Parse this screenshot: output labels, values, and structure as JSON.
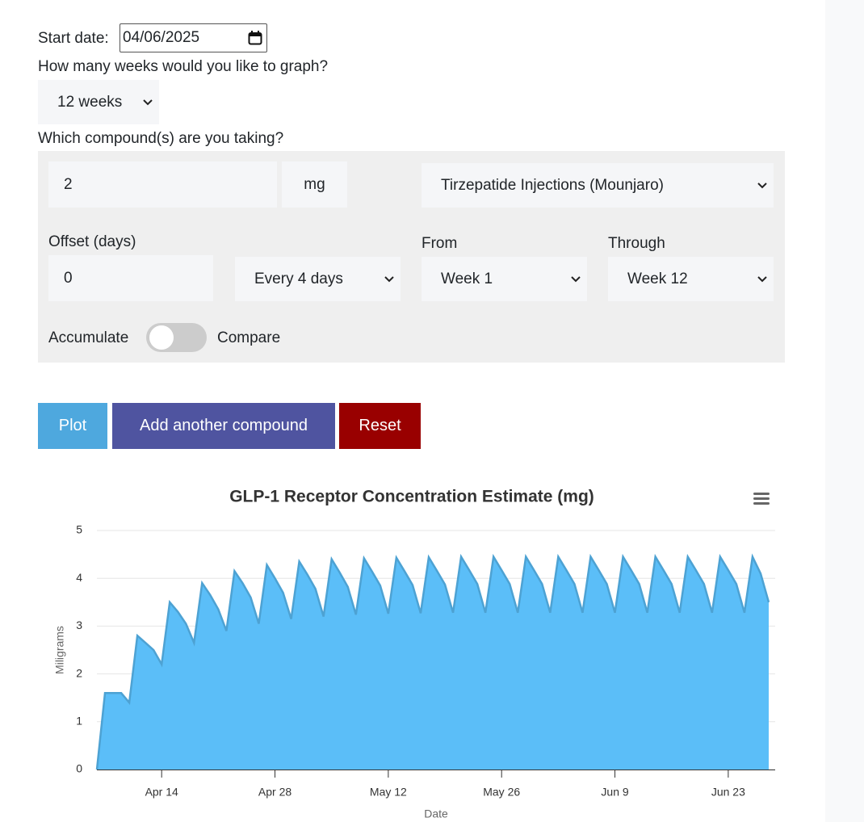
{
  "form": {
    "start_date_label": "Start date:",
    "start_date": "04/06/2025",
    "weeks_label": "How many weeks would you like to graph?",
    "weeks": "12 weeks",
    "compounds_label": "Which compound(s) are you taking?",
    "compound": {
      "dose": "2",
      "unit": "mg",
      "name": "Tirzepatide Injections (Mounjaro)",
      "offset_label": "Offset (days)",
      "offset": "0",
      "frequency": "Every 4 days",
      "from_label": "From",
      "from": "Week 1",
      "through_label": "Through",
      "through": "Week 12",
      "accumulate": "Accumulate",
      "compare": "Compare"
    },
    "buttons": [
      "Plot",
      "Add another compound",
      "Reset"
    ]
  },
  "chart_data": {
    "type": "area",
    "title": "GLP-1 Receptor Concentration Estimate (mg)",
    "x_label": "Date",
    "y_label": "Miligrams",
    "x": [
      "Apr 6",
      "Apr 7",
      "Apr 8",
      "Apr 9",
      "Apr 10",
      "Apr 11",
      "Apr 12",
      "Apr 13",
      "Apr 14",
      "Apr 15",
      "Apr 16",
      "Apr 17",
      "Apr 18",
      "Apr 19",
      "Apr 20",
      "Apr 21",
      "Apr 22",
      "Apr 23",
      "Apr 24",
      "Apr 25",
      "Apr 26",
      "Apr 27",
      "Apr 28",
      "Apr 29",
      "Apr 30",
      "May 1",
      "May 2",
      "May 3",
      "May 4",
      "May 5",
      "May 6",
      "May 7",
      "May 8",
      "May 9",
      "May 10",
      "May 11",
      "May 12",
      "May 13",
      "May 14",
      "May 15",
      "May 16",
      "May 17",
      "May 18",
      "May 19",
      "May 20",
      "May 21",
      "May 22",
      "May 23",
      "May 24",
      "May 25",
      "May 26",
      "May 27",
      "May 28",
      "May 29",
      "May 30",
      "May 31",
      "Jun 1",
      "Jun 2",
      "Jun 3",
      "Jun 4",
      "Jun 5",
      "Jun 6",
      "Jun 7",
      "Jun 8",
      "Jun 9",
      "Jun 10",
      "Jun 11",
      "Jun 12",
      "Jun 13",
      "Jun 14",
      "Jun 15",
      "Jun 16",
      "Jun 17",
      "Jun 18",
      "Jun 19",
      "Jun 20",
      "Jun 21",
      "Jun 22",
      "Jun 23",
      "Jun 24",
      "Jun 25",
      "Jun 26",
      "Jun 27",
      "Jun 28"
    ],
    "series": [
      {
        "name": "Tirzepatide Injections (Mounjaro)",
        "color": "#5bbef8",
        "values": [
          0,
          1.6,
          1.6,
          1.6,
          1.4,
          2.8,
          2.65,
          2.5,
          2.2,
          3.5,
          3.3,
          3.05,
          2.65,
          3.9,
          3.65,
          3.35,
          2.9,
          4.15,
          3.9,
          3.6,
          3.05,
          4.28,
          4.0,
          3.7,
          3.15,
          4.35,
          4.08,
          3.78,
          3.2,
          4.4,
          4.12,
          3.82,
          3.24,
          4.42,
          4.14,
          3.85,
          3.26,
          4.43,
          4.15,
          3.86,
          3.27,
          4.44,
          4.16,
          3.87,
          3.28,
          4.45,
          4.17,
          3.88,
          3.28,
          4.45,
          4.17,
          3.88,
          3.28,
          4.45,
          4.17,
          3.88,
          3.28,
          4.45,
          4.17,
          3.88,
          3.28,
          4.45,
          4.17,
          3.88,
          3.28,
          4.45,
          4.17,
          3.88,
          3.28,
          4.45,
          4.17,
          3.88,
          3.28,
          4.45,
          4.17,
          3.88,
          3.28,
          4.45,
          4.17,
          3.88,
          3.28,
          4.45,
          4.1,
          3.5
        ]
      }
    ],
    "xticks": [
      "Apr 14",
      "Apr 28",
      "May 12",
      "May 26",
      "Jun 9",
      "Jun 23"
    ],
    "ylim": [
      0,
      5
    ],
    "yticks": [
      0,
      1,
      2,
      3,
      4,
      5
    ],
    "grid": true
  }
}
